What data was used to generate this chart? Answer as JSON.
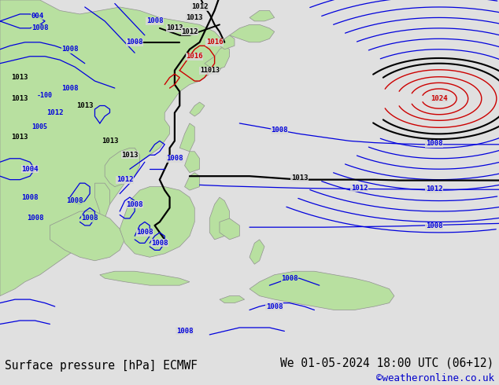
{
  "title_left": "Surface pressure [hPa] ECMWF",
  "title_right": "We 01-05-2024 18:00 UTC (06+12)",
  "watermark": "©weatheronline.co.uk",
  "ocean_color": "#d8d8d8",
  "land_color": "#b8e0a0",
  "land_edge_color": "#909090",
  "footer_bg": "#e0e0e0",
  "contour_blue": "#0000dd",
  "contour_black": "#000000",
  "contour_red": "#cc0000",
  "title_fontsize": 10.5,
  "watermark_color": "#0000cc",
  "fig_width": 6.34,
  "fig_height": 4.9,
  "dpi": 100
}
